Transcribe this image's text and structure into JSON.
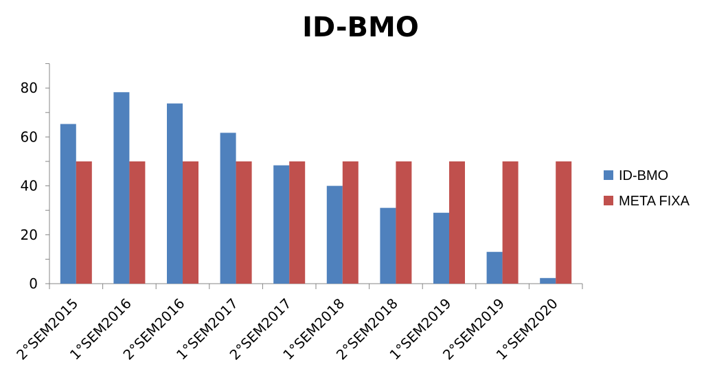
{
  "chart_data": {
    "type": "bar",
    "title": "ID-BMO",
    "xlabel": "",
    "ylabel": "",
    "ylim": [
      0,
      90
    ],
    "yticks": [
      0,
      20,
      40,
      60,
      80
    ],
    "grid": false,
    "legend_position": "right",
    "categories": [
      "2°SEM2015",
      "1°SEM2016",
      "2°SEM2016",
      "1°SEM2017",
      "2°SEM2017",
      "1°SEM2018",
      "2°SEM2018",
      "1°SEM2019",
      "2°SEM2019",
      "1°SEM2020"
    ],
    "series": [
      {
        "name": "ID-BMO",
        "color": "#4F81BD",
        "values": [
          65.3,
          78.3,
          73.7,
          61.7,
          48.4,
          40.0,
          31.0,
          29.0,
          13.0,
          2.3
        ]
      },
      {
        "name": "META FIXA",
        "color": "#C0504D",
        "values": [
          50,
          50,
          50,
          50,
          50,
          50,
          50,
          50,
          50,
          50
        ]
      }
    ]
  }
}
